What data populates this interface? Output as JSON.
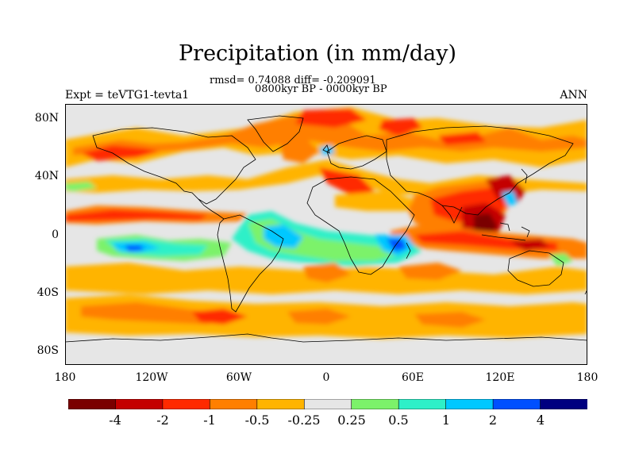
{
  "title": "Precipitation (in mm/day)",
  "stats": "rmsd= 0.74088 diff= -0.209091",
  "period": "0800kyr BP - 0000kyr BP",
  "experiment": "Expt = teVTG1-tevta1",
  "season": "ANN",
  "lat_ticks": [
    "80N",
    "40N",
    "0",
    "40S",
    "80S"
  ],
  "lon_ticks": [
    "180",
    "120W",
    "60W",
    "0",
    "60E",
    "120E",
    "180"
  ],
  "colorbar": {
    "colors": [
      "#7a0000",
      "#c40000",
      "#ff2a00",
      "#ff7f00",
      "#ffb400",
      "#e6e6e6",
      "#7cf26a",
      "#2ef0c8",
      "#00c8ff",
      "#0050ff",
      "#000080"
    ],
    "labels": [
      "-4",
      "-2",
      "-1",
      "-0.5",
      "-0.25",
      "0.25",
      "0.5",
      "1",
      "2",
      "4"
    ]
  }
}
